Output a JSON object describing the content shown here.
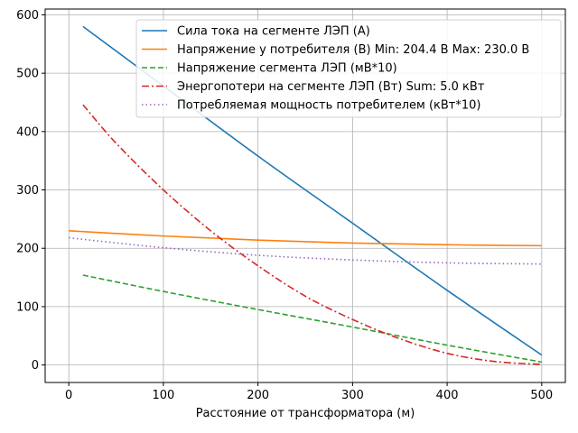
{
  "chart_data": {
    "type": "line",
    "title": "",
    "xlabel": "Расстояние от трансформатора (м)",
    "ylabel": "",
    "xlim": [
      -25,
      525
    ],
    "ylim": [
      -30,
      610
    ],
    "xticks": [
      0,
      100,
      200,
      300,
      400,
      500
    ],
    "yticks": [
      0,
      100,
      200,
      300,
      400,
      500,
      600
    ],
    "grid": true,
    "legend_position": "upper-right",
    "series": [
      {
        "name": "Сила тока на сегменте ЛЭП (А)",
        "color": "#1f77b4",
        "style": "solid",
        "x": [
          15,
          100,
          200,
          300,
          400,
          500
        ],
        "y": [
          580,
          478,
          358,
          243,
          128,
          17
        ]
      },
      {
        "name": "Напряжение у потребителя (В) Min: 204.4 В Max: 230.0 В",
        "color": "#ff7f0e",
        "style": "solid",
        "x": [
          0,
          100,
          200,
          300,
          400,
          500
        ],
        "y": [
          230,
          221,
          214,
          209,
          206,
          204.4
        ]
      },
      {
        "name": "Напряжение сегмента ЛЭП (мВ*10)",
        "color": "#2ca02c",
        "style": "dashed",
        "x": [
          15,
          100,
          200,
          300,
          400,
          500
        ],
        "y": [
          154,
          126,
          95,
          65,
          34,
          5
        ]
      },
      {
        "name": "Энергопотери на сегменте ЛЭП (Вт) Sum: 5.0 кВт",
        "color": "#d62728",
        "style": "dashdot",
        "x": [
          15,
          50,
          100,
          150,
          200,
          250,
          300,
          350,
          400,
          450,
          500
        ],
        "y": [
          446,
          380,
          300,
          230,
          170,
          118,
          78,
          45,
          20,
          6,
          1
        ]
      },
      {
        "name": "Потребляемая мощность потребителем (кВт*10)",
        "color": "#9467bd",
        "style": "dotted",
        "x": [
          0,
          100,
          200,
          300,
          400,
          500
        ],
        "y": [
          218,
          201,
          188,
          180,
          175,
          173
        ]
      }
    ]
  }
}
